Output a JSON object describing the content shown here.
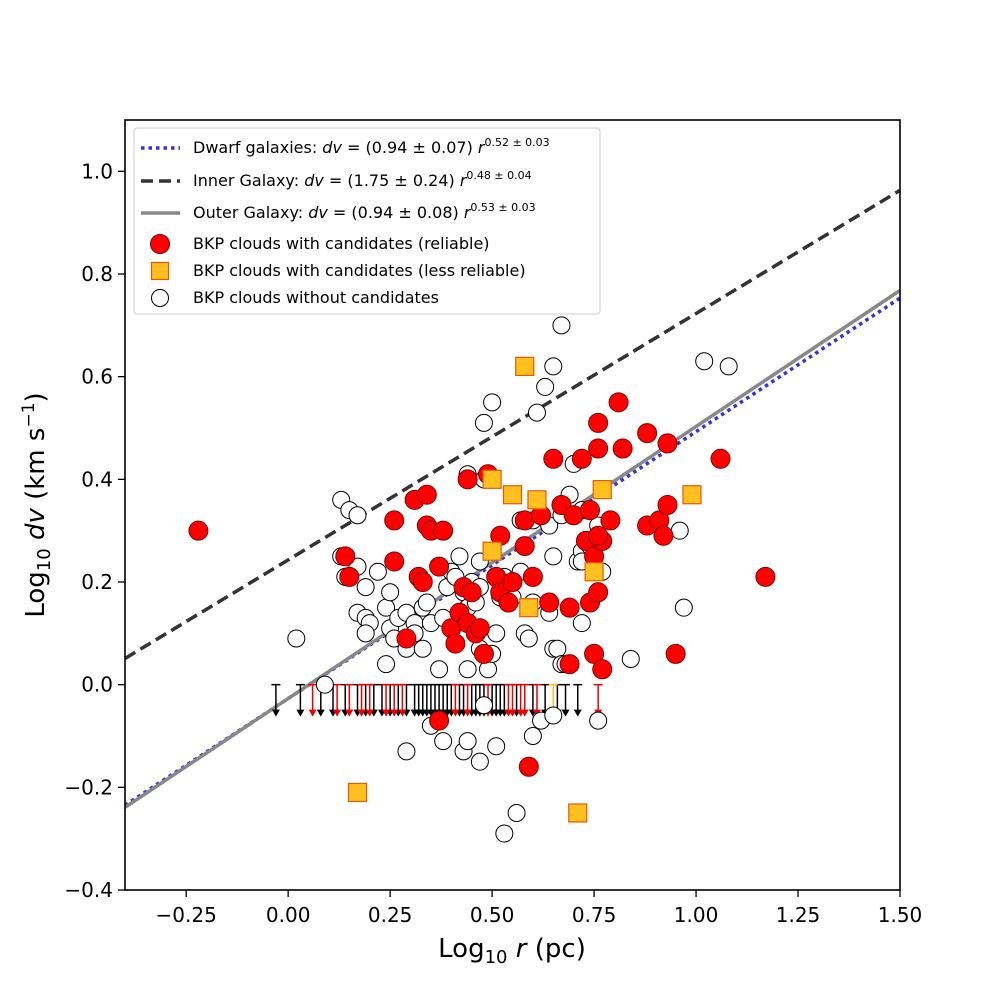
{
  "chart_data": {
    "type": "scatter",
    "xlabel": {
      "main": "Log",
      "sub": "10",
      "var": "r",
      "unit": " (pc)"
    },
    "ylabel": {
      "main": "Log",
      "sub": "10",
      "var": "dv",
      "unit": " (km s",
      "unit_sup": "−1",
      "unit_end": ")"
    },
    "xlim": [
      -0.4,
      1.5
    ],
    "ylim": [
      -0.4,
      1.1
    ],
    "xticks": [
      -0.25,
      0.0,
      0.25,
      0.5,
      0.75,
      1.0,
      1.25,
      1.5
    ],
    "xtick_labels": [
      "−0.25",
      "0.00",
      "0.25",
      "0.50",
      "0.75",
      "1.00",
      "1.25",
      "1.50"
    ],
    "yticks": [
      -0.4,
      -0.2,
      0.0,
      0.2,
      0.4,
      0.6,
      0.8,
      1.0
    ],
    "ytick_labels": [
      "−0.4",
      "−0.2",
      "0.0",
      "0.2",
      "0.4",
      "0.6",
      "0.8",
      "1.0"
    ],
    "grid": false,
    "legend_position": "top-left",
    "lines": [
      {
        "name": "Dwarf galaxies",
        "label_pre": "Dwarf galaxies: ",
        "label_mid": " = (0.94 ± 0.07) ",
        "sup": "0.52 ± 0.03",
        "intercept": -0.027,
        "slope": 0.52,
        "color": "#3333dd",
        "style": "dotted"
      },
      {
        "name": "Inner Galaxy",
        "label_pre": "Inner Galaxy: ",
        "label_mid": " = (1.75 ± 0.24) ",
        "sup": "0.48 ± 0.04",
        "intercept": 0.243,
        "slope": 0.48,
        "color": "#333333",
        "style": "dashed"
      },
      {
        "name": "Outer Galaxy",
        "label_pre": "Outer Galaxy: ",
        "label_mid": " = (0.94 ± 0.08) ",
        "sup": "0.53 ± 0.03",
        "intercept": -0.027,
        "slope": 0.53,
        "color": "#888888",
        "style": "solid"
      }
    ],
    "series": [
      {
        "name": "BKP clouds without candidates",
        "marker": "circle-open",
        "color": "#ffffff",
        "edge": "#000000",
        "points": [
          [
            0.13,
            0.36
          ],
          [
            0.15,
            0.34
          ],
          [
            0.17,
            0.33
          ],
          [
            0.13,
            0.25
          ],
          [
            0.14,
            0.21
          ],
          [
            0.17,
            0.23
          ],
          [
            0.19,
            0.19
          ],
          [
            0.17,
            0.14
          ],
          [
            0.19,
            0.13
          ],
          [
            0.2,
            0.12
          ],
          [
            0.19,
            0.1
          ],
          [
            0.22,
            0.22
          ],
          [
            0.24,
            0.15
          ],
          [
            0.25,
            0.18
          ],
          [
            0.25,
            0.11
          ],
          [
            0.27,
            0.13
          ],
          [
            0.29,
            0.14
          ],
          [
            0.31,
            0.12
          ],
          [
            0.26,
            0.09
          ],
          [
            0.29,
            0.07
          ],
          [
            0.24,
            0.04
          ],
          [
            0.31,
            0.1
          ],
          [
            0.33,
            0.15
          ],
          [
            0.34,
            0.16
          ],
          [
            0.33,
            0.07
          ],
          [
            0.35,
            0.12
          ],
          [
            0.37,
            0.03
          ],
          [
            0.38,
            0.13
          ],
          [
            0.39,
            0.19
          ],
          [
            0.4,
            0.22
          ],
          [
            0.41,
            0.21
          ],
          [
            0.42,
            0.25
          ],
          [
            0.43,
            0.18
          ],
          [
            0.44,
            0.15
          ],
          [
            0.45,
            0.2
          ],
          [
            0.46,
            0.16
          ],
          [
            0.47,
            0.19
          ],
          [
            0.47,
            0.24
          ],
          [
            0.44,
            0.41
          ],
          [
            0.48,
            0.4
          ],
          [
            0.48,
            0.51
          ],
          [
            0.5,
            0.55
          ],
          [
            0.44,
            0.03
          ],
          [
            0.47,
            0.07
          ],
          [
            0.49,
            0.03
          ],
          [
            0.5,
            0.06
          ],
          [
            0.51,
            0.1
          ],
          [
            0.52,
            0.17
          ],
          [
            0.53,
            0.21
          ],
          [
            0.55,
            0.17
          ],
          [
            0.57,
            0.22
          ],
          [
            0.58,
            0.1
          ],
          [
            0.59,
            0.09
          ],
          [
            0.57,
            0.32
          ],
          [
            0.6,
            0.32
          ],
          [
            0.61,
            0.53
          ],
          [
            0.63,
            0.58
          ],
          [
            0.65,
            0.62
          ],
          [
            0.67,
            0.7
          ],
          [
            0.64,
            0.31
          ],
          [
            0.65,
            0.25
          ],
          [
            0.67,
            0.33
          ],
          [
            0.69,
            0.37
          ],
          [
            0.7,
            0.43
          ],
          [
            0.71,
            0.24
          ],
          [
            0.72,
            0.26
          ],
          [
            0.72,
            0.24
          ],
          [
            0.72,
            0.12
          ],
          [
            0.65,
            0.07
          ],
          [
            0.66,
            0.07
          ],
          [
            0.67,
            0.04
          ],
          [
            0.68,
            0.04
          ],
          [
            0.6,
            0.16
          ],
          [
            0.64,
            0.14
          ],
          [
            0.72,
            0.34
          ],
          [
            0.74,
            0.27
          ],
          [
            0.76,
            0.31
          ],
          [
            0.77,
            0.22
          ],
          [
            0.84,
            0.05
          ],
          [
            0.96,
            0.3
          ],
          [
            0.97,
            0.15
          ],
          [
            1.02,
            0.63
          ],
          [
            1.08,
            0.62
          ],
          [
            0.02,
            0.09
          ],
          [
            0.09,
            0.0
          ],
          [
            0.48,
            -0.04
          ],
          [
            0.35,
            -0.08
          ],
          [
            0.38,
            -0.11
          ],
          [
            0.43,
            -0.13
          ],
          [
            0.44,
            -0.11
          ],
          [
            0.47,
            -0.15
          ],
          [
            0.51,
            -0.12
          ],
          [
            0.29,
            -0.13
          ],
          [
            0.6,
            -0.1
          ],
          [
            0.62,
            -0.07
          ],
          [
            0.65,
            -0.06
          ],
          [
            0.76,
            -0.07
          ],
          [
            0.53,
            -0.29
          ],
          [
            0.56,
            -0.25
          ]
        ]
      },
      {
        "name": "BKP clouds with candidates (reliable)",
        "marker": "circle",
        "color": "#ff0000",
        "edge": "#880000",
        "points": [
          [
            -0.22,
            0.3
          ],
          [
            0.14,
            0.25
          ],
          [
            0.15,
            0.21
          ],
          [
            0.26,
            0.32
          ],
          [
            0.26,
            0.24
          ],
          [
            0.31,
            0.36
          ],
          [
            0.34,
            0.37
          ],
          [
            0.34,
            0.31
          ],
          [
            0.35,
            0.3
          ],
          [
            0.38,
            0.3
          ],
          [
            0.32,
            0.21
          ],
          [
            0.33,
            0.2
          ],
          [
            0.37,
            0.23
          ],
          [
            0.29,
            0.09
          ],
          [
            0.4,
            0.11
          ],
          [
            0.41,
            0.08
          ],
          [
            0.42,
            0.14
          ],
          [
            0.43,
            0.19
          ],
          [
            0.44,
            0.12
          ],
          [
            0.45,
            0.18
          ],
          [
            0.46,
            0.1
          ],
          [
            0.47,
            0.11
          ],
          [
            0.48,
            0.06
          ],
          [
            0.44,
            0.4
          ],
          [
            0.49,
            0.41
          ],
          [
            0.52,
            0.29
          ],
          [
            0.51,
            0.21
          ],
          [
            0.52,
            0.18
          ],
          [
            0.54,
            0.16
          ],
          [
            0.55,
            0.2
          ],
          [
            0.58,
            0.27
          ],
          [
            0.58,
            0.32
          ],
          [
            0.6,
            0.21
          ],
          [
            0.62,
            0.33
          ],
          [
            0.64,
            0.16
          ],
          [
            0.65,
            0.44
          ],
          [
            0.67,
            0.35
          ],
          [
            0.69,
            0.15
          ],
          [
            0.7,
            0.33
          ],
          [
            0.72,
            0.44
          ],
          [
            0.73,
            0.28
          ],
          [
            0.74,
            0.34
          ],
          [
            0.74,
            0.16
          ],
          [
            0.75,
            0.25
          ],
          [
            0.76,
            0.18
          ],
          [
            0.77,
            0.28
          ],
          [
            0.76,
            0.29
          ],
          [
            0.76,
            0.46
          ],
          [
            0.76,
            0.51
          ],
          [
            0.79,
            0.32
          ],
          [
            0.81,
            0.55
          ],
          [
            0.82,
            0.46
          ],
          [
            0.88,
            0.49
          ],
          [
            0.88,
            0.31
          ],
          [
            0.91,
            0.32
          ],
          [
            0.92,
            0.29
          ],
          [
            0.93,
            0.35
          ],
          [
            0.93,
            0.47
          ],
          [
            0.95,
            0.06
          ],
          [
            1.06,
            0.44
          ],
          [
            1.17,
            0.21
          ],
          [
            0.69,
            0.04
          ],
          [
            0.75,
            0.06
          ],
          [
            0.77,
            0.03
          ],
          [
            0.37,
            -0.07
          ],
          [
            0.59,
            -0.16
          ]
        ]
      },
      {
        "name": "BKP clouds with candidates (less reliable)",
        "marker": "square",
        "color": "#ffc020",
        "edge": "#e85a00",
        "points": [
          [
            0.5,
            0.4
          ],
          [
            0.55,
            0.37
          ],
          [
            0.61,
            0.36
          ],
          [
            0.5,
            0.26
          ],
          [
            0.58,
            0.62
          ],
          [
            0.59,
            0.15
          ],
          [
            0.75,
            0.22
          ],
          [
            0.77,
            0.38
          ],
          [
            0.99,
            0.37
          ],
          [
            0.17,
            -0.21
          ],
          [
            0.71,
            -0.25
          ]
        ]
      }
    ],
    "upper_limits": {
      "y": 0.0,
      "black_x": [
        -0.03,
        0.03,
        0.08,
        0.11,
        0.14,
        0.17,
        0.19,
        0.21,
        0.23,
        0.25,
        0.27,
        0.29,
        0.31,
        0.32,
        0.33,
        0.34,
        0.35,
        0.36,
        0.37,
        0.38,
        0.39,
        0.4,
        0.42,
        0.43,
        0.45,
        0.46,
        0.47,
        0.48,
        0.5,
        0.51,
        0.52,
        0.53,
        0.56,
        0.6,
        0.63,
        0.66,
        0.68,
        0.71
      ],
      "red_x": [
        0.06,
        0.12,
        0.15,
        0.18,
        0.2,
        0.24,
        0.26,
        0.28,
        0.41,
        0.44,
        0.49,
        0.54,
        0.55,
        0.57,
        0.58,
        0.61,
        0.76
      ],
      "gold_x": [
        0.65
      ]
    }
  }
}
